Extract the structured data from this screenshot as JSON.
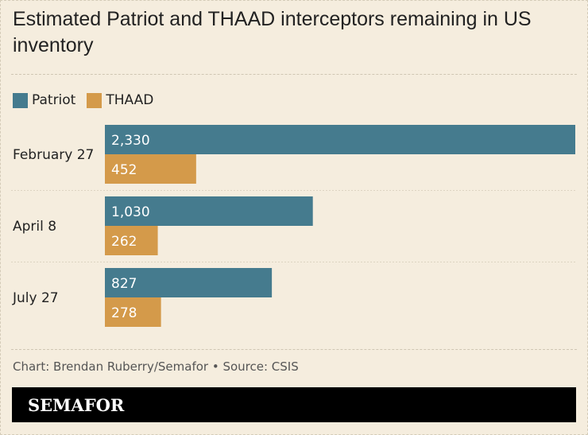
{
  "title": "Estimated Patriot and THAAD interceptors remaining in US inventory",
  "legend": [
    {
      "name": "Patriot",
      "color": "#457b8e"
    },
    {
      "name": "THAAD",
      "color": "#d49a4a"
    }
  ],
  "credit": "Chart: Brendan Ruberry/Semafor • Source: CSIS",
  "logo_text": "SEMAFOR",
  "chart_data": {
    "type": "bar",
    "orientation": "horizontal",
    "title": "Estimated Patriot and THAAD interceptors remaining in US inventory",
    "categories": [
      "February 27",
      "April 8",
      "July 27"
    ],
    "series": [
      {
        "name": "Patriot",
        "color": "#457b8e",
        "values": [
          2330,
          1030,
          827
        ],
        "labels": [
          "2,330",
          "1,030",
          "827"
        ]
      },
      {
        "name": "THAAD",
        "color": "#d49a4a",
        "values": [
          452,
          262,
          278
        ],
        "labels": [
          "452",
          "262",
          "278"
        ]
      }
    ],
    "xlim": [
      0,
      2330
    ],
    "legend": "top-left",
    "grid": false
  }
}
